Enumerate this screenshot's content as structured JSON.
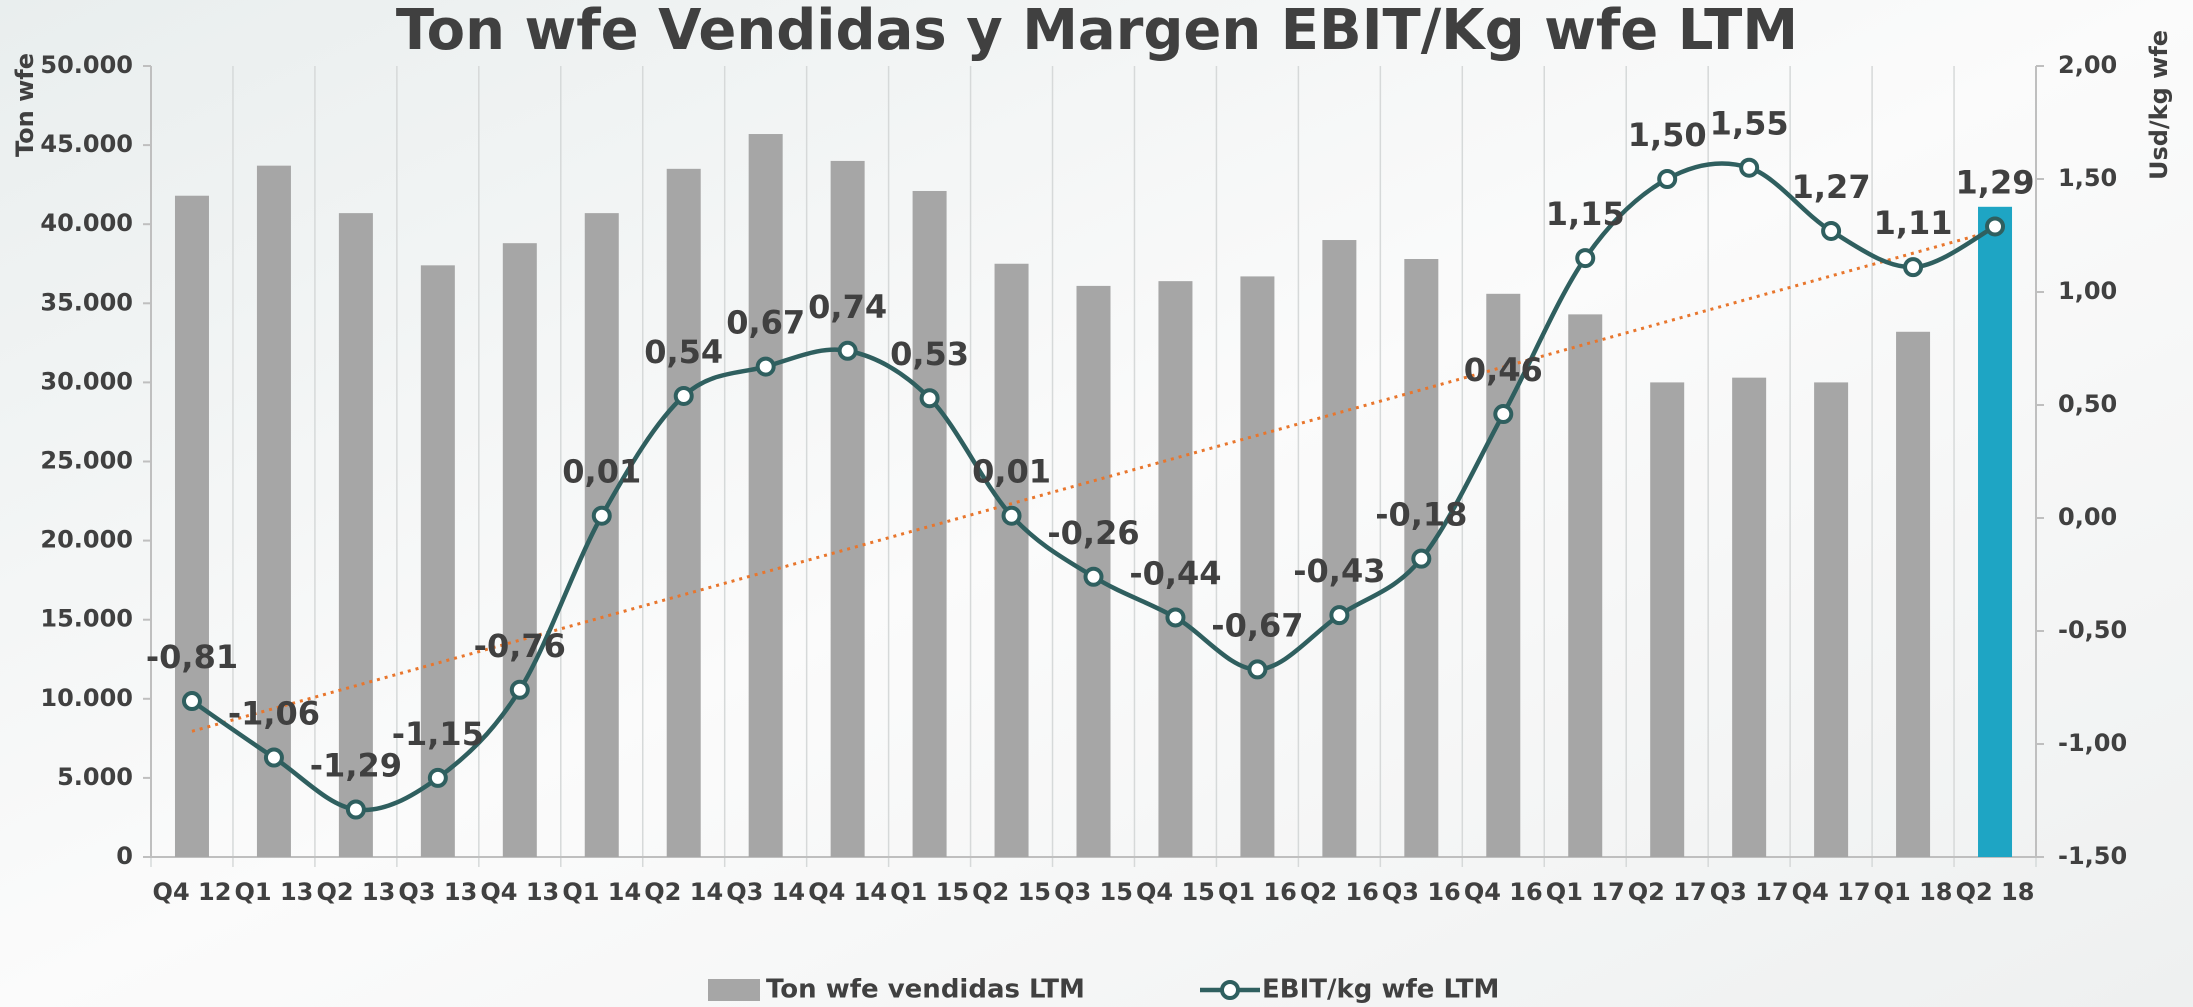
{
  "chart_data": {
    "type": "bar-line",
    "title": "Ton wfe Vendidas y Margen EBIT/Kg wfe LTM",
    "y_label": "Ton wfe",
    "y2_label": "Usd/kg wfe",
    "categories": [
      "Q4 12",
      "Q1 13",
      "Q2 13",
      "Q3 13",
      "Q4 13",
      "Q1 14",
      "Q2 14",
      "Q3 14",
      "Q4 14",
      "Q1 15",
      "Q2 15",
      "Q3 15",
      "Q4 15",
      "Q1 16",
      "Q2 16",
      "Q3 16",
      "Q4 16",
      "Q1 17",
      "Q2 17",
      "Q3 17",
      "Q4 17",
      "Q1 18",
      "Q2 18"
    ],
    "series": [
      {
        "name": "Ton wfe vendidas LTM",
        "color": "#a6a6a6",
        "highlight_color": "#1ea5c4",
        "highlight_index": 22,
        "values": [
          41800,
          43700,
          40700,
          37400,
          38800,
          40700,
          43500,
          45700,
          44000,
          42100,
          37500,
          36100,
          36400,
          36700,
          39000,
          37800,
          35600,
          34300,
          30000,
          30300,
          30000,
          33200,
          41100
        ]
      },
      {
        "name": "EBIT/kg wfe LTM",
        "color": "#2f5f5f",
        "axis": "y2",
        "values": [
          -0.81,
          -1.06,
          -1.29,
          -1.15,
          -0.76,
          0.01,
          0.54,
          0.67,
          0.74,
          0.53,
          0.01,
          -0.26,
          -0.44,
          -0.67,
          -0.43,
          -0.18,
          0.46,
          1.15,
          1.5,
          1.55,
          1.27,
          1.11,
          1.29
        ],
        "value_labels": [
          "-0,81",
          "-1,06",
          "-1,29",
          "-1,15",
          "-0,76",
          "0,01",
          "0,54",
          "0,67",
          "0,74",
          "0,53",
          "0,01",
          "-0,26",
          "-0,44",
          "-0,67",
          "-0,43",
          "-0,18",
          "0,46",
          "1,15",
          "1,50",
          "1,55",
          "1,27",
          "1,11",
          "1,29"
        ]
      }
    ],
    "ylim": [
      0,
      50000
    ],
    "yticks": [
      0,
      {
        "value": 5000,
        "label": "5.000"
      },
      {
        "value": 10000,
        "label": "10.000"
      },
      {
        "value": 15000,
        "label": "15.000"
      },
      {
        "value": 20000,
        "label": "20.000"
      },
      {
        "value": 25000,
        "label": "25.000"
      },
      {
        "value": 30000,
        "label": "30.000"
      },
      {
        "value": 35000,
        "label": "35.000"
      },
      {
        "value": 40000,
        "label": "40.000"
      },
      {
        "value": 45000,
        "label": "45.000"
      },
      {
        "value": 50000,
        "label": "50.000"
      }
    ],
    "y2lim": [
      -1.5,
      2.0
    ],
    "y2ticks": [
      {
        "value": -1.5,
        "label": "-1,50"
      },
      {
        "value": -1.0,
        "label": "-1,00"
      },
      {
        "value": -0.5,
        "label": "-0,50"
      },
      {
        "value": 0,
        "label": "0,00"
      },
      {
        "value": 0.5,
        "label": "0,50"
      },
      {
        "value": 1.0,
        "label": "1,00"
      },
      {
        "value": 1.5,
        "label": "1,50"
      },
      {
        "value": 2.0,
        "label": "2,00"
      }
    ],
    "trendline": {
      "series": 1,
      "color": "#e8762d"
    },
    "vertical_grid": true,
    "legend": "bottom"
  }
}
